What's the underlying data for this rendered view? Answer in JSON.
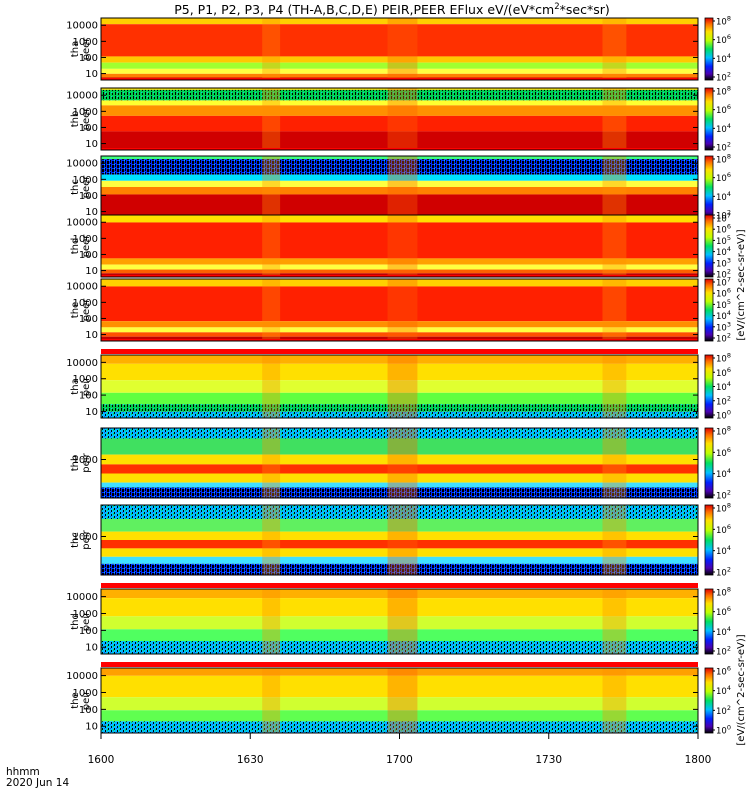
{
  "title": "P5, P1, P2, P3, P4 (TH-A,B,C,D,E) PEIR,PEER EFlux eV/(eV*cm",
  "title_sup": "2",
  "title_end": "*sec*sr)",
  "footer": {
    "line1": "hhmm",
    "line2": "2020 Jun 14"
  },
  "colors": {
    "fill_red": "#ff0000",
    "frame": "#000000"
  },
  "chart_data": {
    "type": "heatmap",
    "x_ticks": [
      "1600",
      "1630",
      "1700",
      "1730",
      "1800"
    ],
    "x_range": [
      "1600",
      "1800"
    ],
    "panels": [
      {
        "probe": "tha",
        "species": "peer",
        "y_ticks": [
          "10000",
          "1000",
          "100",
          "10"
        ],
        "cbar_ticks": [
          "10^8",
          "10^6",
          "10^4",
          "10^2"
        ],
        "style": "peer_a"
      },
      {
        "probe": "thb",
        "species": "peer",
        "y_ticks": [
          "10000",
          "1000",
          "100",
          "10"
        ],
        "cbar_ticks": [
          "10^8",
          "10^6",
          "10^4",
          "10^2"
        ],
        "style": "peer_b"
      },
      {
        "probe": "thc",
        "species": "peer",
        "y_ticks": [
          "10000",
          "1000",
          "100",
          "10"
        ],
        "cbar_ticks": [
          "10^8",
          "10^6",
          "10^4",
          "10^2"
        ],
        "style": "peer_c"
      },
      {
        "probe": "thd",
        "species": "peer",
        "y_ticks": [
          "10000",
          "1000",
          "100",
          "10"
        ],
        "cbar_ticks": [
          "10^7",
          "10^6",
          "10^5",
          "10^4",
          "10^3",
          "10^2"
        ],
        "style": "peer_d"
      },
      {
        "probe": "the",
        "species": "peer",
        "y_ticks": [
          "10000",
          "1000",
          "100",
          "10"
        ],
        "cbar_ticks": [
          "10^7",
          "10^6",
          "10^5",
          "10^4",
          "10^3",
          "10^2"
        ],
        "style": "peer_e"
      },
      {
        "probe": "tha",
        "species": "peir",
        "y_ticks": [
          "10000",
          "1000",
          "100",
          "10"
        ],
        "cbar_ticks": [
          "10^8",
          "10^6",
          "10^4",
          "10^2",
          "10^0"
        ],
        "style": "peir_a"
      },
      {
        "probe": "thb",
        "species": "peir",
        "y_ticks": [
          "1000"
        ],
        "cbar_ticks": [
          "10^8",
          "10^6",
          "10^4",
          "10^2"
        ],
        "style": "peir_b"
      },
      {
        "probe": "thc",
        "species": "peir",
        "y_ticks": [
          "1000"
        ],
        "cbar_ticks": [
          "10^8",
          "10^6",
          "10^4",
          "10^2"
        ],
        "style": "peir_c"
      },
      {
        "probe": "thd",
        "species": "peir",
        "y_ticks": [
          "10000",
          "1000",
          "100",
          "10"
        ],
        "cbar_ticks": [
          "10^8",
          "10^6",
          "10^4",
          "10^2"
        ],
        "style": "peir_d"
      },
      {
        "probe": "the",
        "species": "peir",
        "y_ticks": [
          "10000",
          "1000",
          "100",
          "10"
        ],
        "cbar_ticks": [
          "10^6",
          "10^4",
          "10^2",
          "10^0"
        ],
        "style": "peir_e"
      }
    ],
    "cbar_labels": [
      "[eV/(cm^2-sec-sr-eV)]",
      "[eV/(cm^2-sec-sr-eV)]"
    ]
  }
}
